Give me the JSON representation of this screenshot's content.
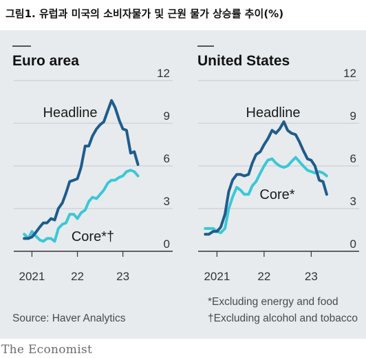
{
  "page_title": "그림1. 유럽과 미국의 소비자물가 및 근원 물가 상승률 추이(%)",
  "brand": "The Economist",
  "source": "Source: Haver Analytics",
  "footnotes": [
    "*Excluding energy and food",
    "†Excluding alcohol and tobacco"
  ],
  "colors": {
    "headline": "#1f5c8c",
    "core": "#3cc7d6",
    "panel_bg": "#e7ebee",
    "axis": "#333333"
  },
  "chart_data": [
    {
      "type": "line",
      "title": "Euro area",
      "ylim": [
        0,
        12
      ],
      "y_ticks": [
        "12",
        "9",
        "6",
        "3",
        "0"
      ],
      "x_tick_labels": [
        "2021",
        "22",
        "23"
      ],
      "x_tick_values": [
        2021.0,
        2022.0,
        2023.0
      ],
      "xlim": [
        2020.6,
        2023.55
      ],
      "grid": true,
      "series": [
        {
          "name": "Headline",
          "x": [
            2020.83,
            2020.92,
            2021.0,
            2021.08,
            2021.17,
            2021.25,
            2021.33,
            2021.42,
            2021.5,
            2021.58,
            2021.67,
            2021.75,
            2021.83,
            2021.92,
            2022.0,
            2022.08,
            2022.17,
            2022.25,
            2022.33,
            2022.42,
            2022.5,
            2022.58,
            2022.67,
            2022.75,
            2022.83,
            2022.92,
            2023.0,
            2023.08,
            2023.17,
            2023.25,
            2023.33
          ],
          "y": [
            0.9,
            0.9,
            1.0,
            1.3,
            1.7,
            2.0,
            2.0,
            2.3,
            2.2,
            3.0,
            3.4,
            4.1,
            4.9,
            5.0,
            5.1,
            5.9,
            7.4,
            7.4,
            8.1,
            8.6,
            8.9,
            9.1,
            9.9,
            10.6,
            10.1,
            9.2,
            8.6,
            8.5,
            6.9,
            7.0,
            6.1
          ]
        },
        {
          "name": "Core*†",
          "x": [
            2020.83,
            2020.92,
            2021.0,
            2021.08,
            2021.17,
            2021.25,
            2021.33,
            2021.42,
            2021.5,
            2021.58,
            2021.67,
            2021.75,
            2021.83,
            2021.92,
            2022.0,
            2022.08,
            2022.17,
            2022.25,
            2022.33,
            2022.42,
            2022.5,
            2022.58,
            2022.67,
            2022.75,
            2022.83,
            2022.92,
            2023.0,
            2023.08,
            2023.17,
            2023.25,
            2023.33
          ],
          "y": [
            1.2,
            0.9,
            1.4,
            1.1,
            0.8,
            0.7,
            0.9,
            0.9,
            0.7,
            1.6,
            1.9,
            2.0,
            2.6,
            2.6,
            2.3,
            2.7,
            2.9,
            3.5,
            3.8,
            3.7,
            4.0,
            4.3,
            4.8,
            5.0,
            5.0,
            5.2,
            5.3,
            5.6,
            5.7,
            5.6,
            5.3
          ]
        }
      ]
    },
    {
      "type": "line",
      "title": "United States",
      "ylim": [
        0,
        12
      ],
      "y_ticks": [
        "12",
        "9",
        "6",
        "3",
        "0"
      ],
      "x_tick_labels": [
        "2021",
        "22",
        "23"
      ],
      "x_tick_values": [
        2021.0,
        2022.0,
        2023.0
      ],
      "xlim": [
        2020.6,
        2023.55
      ],
      "grid": true,
      "series": [
        {
          "name": "Headline",
          "x": [
            2020.75,
            2020.83,
            2020.92,
            2021.0,
            2021.08,
            2021.17,
            2021.25,
            2021.33,
            2021.42,
            2021.5,
            2021.58,
            2021.67,
            2021.75,
            2021.83,
            2021.92,
            2022.0,
            2022.08,
            2022.17,
            2022.25,
            2022.33,
            2022.42,
            2022.5,
            2022.58,
            2022.67,
            2022.75,
            2022.83,
            2022.92,
            2023.0,
            2023.08,
            2023.17,
            2023.25,
            2023.33
          ],
          "y": [
            1.2,
            1.2,
            1.4,
            1.4,
            1.7,
            2.6,
            4.2,
            5.0,
            5.4,
            5.4,
            5.3,
            5.4,
            6.2,
            6.8,
            7.0,
            7.5,
            7.9,
            8.5,
            8.3,
            8.6,
            9.1,
            8.5,
            8.3,
            8.2,
            7.7,
            7.1,
            6.5,
            6.4,
            6.0,
            5.0,
            4.9,
            4.0
          ]
        },
        {
          "name": "Core*",
          "x": [
            2020.75,
            2020.83,
            2020.92,
            2021.0,
            2021.08,
            2021.17,
            2021.25,
            2021.33,
            2021.42,
            2021.5,
            2021.58,
            2021.67,
            2021.75,
            2021.83,
            2021.92,
            2022.0,
            2022.08,
            2022.17,
            2022.25,
            2022.33,
            2022.42,
            2022.5,
            2022.58,
            2022.67,
            2022.75,
            2022.83,
            2022.92,
            2023.0,
            2023.08,
            2023.17,
            2023.25,
            2023.33
          ],
          "y": [
            1.6,
            1.6,
            1.6,
            1.4,
            1.3,
            1.6,
            3.0,
            3.8,
            4.5,
            4.3,
            4.0,
            4.0,
            4.6,
            4.9,
            5.5,
            6.0,
            6.4,
            6.5,
            6.2,
            6.0,
            5.9,
            6.0,
            6.3,
            6.6,
            6.3,
            6.0,
            5.7,
            5.6,
            5.5,
            5.6,
            5.5,
            5.3
          ]
        }
      ]
    }
  ]
}
